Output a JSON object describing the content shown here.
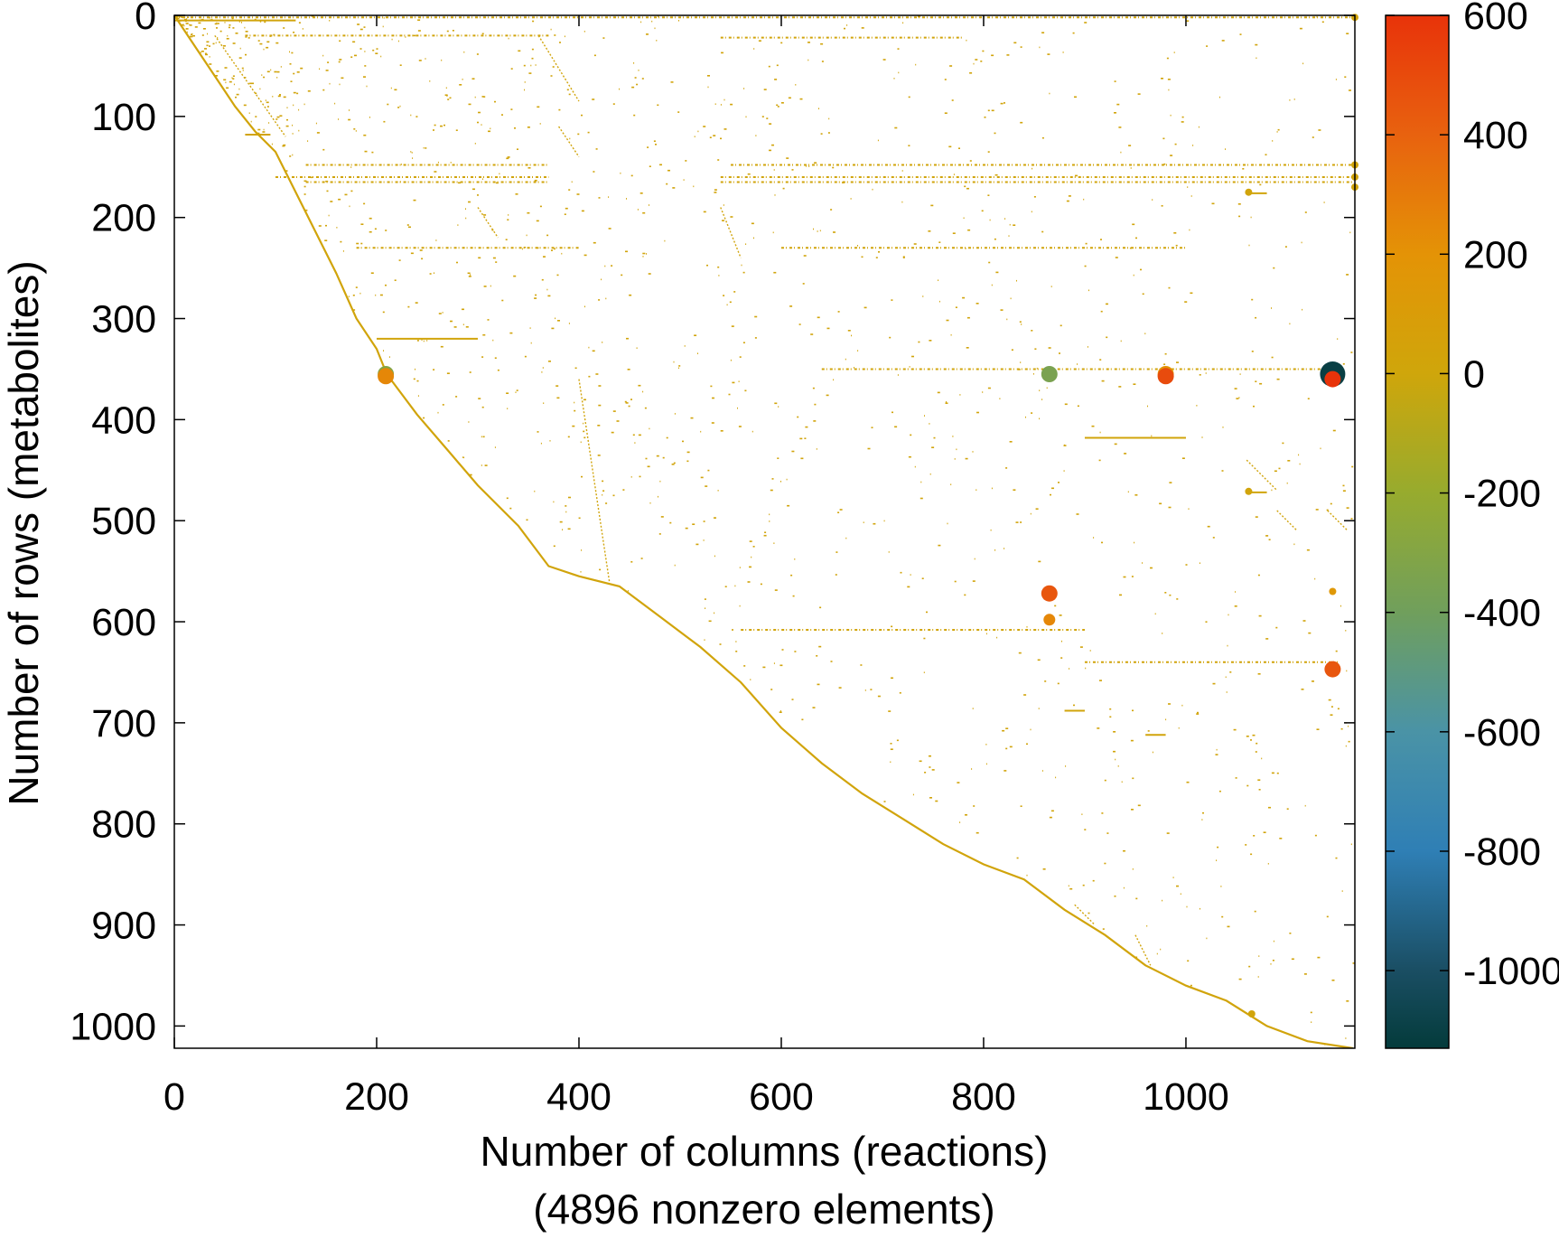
{
  "chart_data": {
    "type": "scatter",
    "title": "",
    "xlabel": "Number of columns (reactions)",
    "xlabel_line2": "(4896 nonzero elements)",
    "ylabel": "Number of rows (metabolites)",
    "xlim": [
      0,
      1167
    ],
    "ylim": [
      1022,
      0
    ],
    "y_inverted": true,
    "grid": false,
    "x_ticks": [
      {
        "value": 0,
        "label": "0"
      },
      {
        "value": 200,
        "label": "200"
      },
      {
        "value": 400,
        "label": "400"
      },
      {
        "value": 600,
        "label": "600"
      },
      {
        "value": 800,
        "label": "800"
      },
      {
        "value": 1000,
        "label": "1000"
      }
    ],
    "y_ticks": [
      {
        "value": 0,
        "label": "0"
      },
      {
        "value": 100,
        "label": "100"
      },
      {
        "value": 200,
        "label": "200"
      },
      {
        "value": 300,
        "label": "300"
      },
      {
        "value": 400,
        "label": "400"
      },
      {
        "value": 500,
        "label": "500"
      },
      {
        "value": 600,
        "label": "600"
      },
      {
        "value": 700,
        "label": "700"
      },
      {
        "value": 800,
        "label": "800"
      },
      {
        "value": 900,
        "label": "900"
      },
      {
        "value": 1000,
        "label": "1000"
      }
    ],
    "colorbar": {
      "range": [
        -1130,
        600
      ],
      "ticks": [
        {
          "value": 600,
          "label": "600"
        },
        {
          "value": 400,
          "label": "400"
        },
        {
          "value": 200,
          "label": "200"
        },
        {
          "value": 0,
          "label": "0"
        },
        {
          "value": -200,
          "label": "-200"
        },
        {
          "value": -400,
          "label": "-400"
        },
        {
          "value": -600,
          "label": "-600"
        },
        {
          "value": -800,
          "label": "-800"
        },
        {
          "value": -1000,
          "label": "-1000"
        }
      ],
      "stops": [
        {
          "value": 600,
          "color": "#e8330a"
        },
        {
          "value": 400,
          "color": "#e8620f"
        },
        {
          "value": 200,
          "color": "#e49306"
        },
        {
          "value": 0,
          "color": "#cfa60b"
        },
        {
          "value": -200,
          "color": "#97ab2e"
        },
        {
          "value": -400,
          "color": "#709f5c"
        },
        {
          "value": -600,
          "color": "#4a93a6"
        },
        {
          "value": -800,
          "color": "#2f7fb5"
        },
        {
          "value": -1000,
          "color": "#1a4e63"
        },
        {
          "value": -1130,
          "color": "#043b3b"
        }
      ]
    },
    "diagonal_band": [
      [
        0,
        0
      ],
      [
        20,
        30
      ],
      [
        40,
        60
      ],
      [
        60,
        90
      ],
      [
        80,
        115
      ],
      [
        100,
        135
      ],
      [
        120,
        175
      ],
      [
        140,
        215
      ],
      [
        160,
        255
      ],
      [
        180,
        300
      ],
      [
        200,
        330
      ],
      [
        210,
        355
      ],
      [
        240,
        395
      ],
      [
        270,
        430
      ],
      [
        300,
        465
      ],
      [
        340,
        505
      ],
      [
        370,
        545
      ],
      [
        400,
        555
      ],
      [
        440,
        565
      ],
      [
        480,
        595
      ],
      [
        520,
        625
      ],
      [
        560,
        660
      ],
      [
        600,
        705
      ],
      [
        640,
        740
      ],
      [
        680,
        770
      ],
      [
        720,
        795
      ],
      [
        760,
        820
      ],
      [
        800,
        840
      ],
      [
        840,
        855
      ],
      [
        880,
        885
      ],
      [
        920,
        910
      ],
      [
        960,
        940
      ],
      [
        1000,
        960
      ],
      [
        1040,
        975
      ],
      [
        1080,
        1000
      ],
      [
        1120,
        1015
      ],
      [
        1165,
        1022
      ]
    ],
    "horizontal_segments": [
      {
        "row": 2,
        "x": [
          0,
          1165
        ],
        "value": 20
      },
      {
        "row": 5,
        "x": [
          0,
          120
        ],
        "value": 20
      },
      {
        "row": 20,
        "x": [
          70,
          370
        ],
        "value": 20
      },
      {
        "row": 22,
        "x": [
          540,
          780
        ],
        "value": 20
      },
      {
        "row": 118,
        "x": [
          70,
          95
        ],
        "value": 20
      },
      {
        "row": 148,
        "x": [
          130,
          370
        ],
        "value": 20
      },
      {
        "row": 148,
        "x": [
          550,
          1165
        ],
        "value": 20
      },
      {
        "row": 160,
        "x": [
          100,
          370
        ],
        "value": 20
      },
      {
        "row": 160,
        "x": [
          540,
          1165
        ],
        "value": 20
      },
      {
        "row": 165,
        "x": [
          130,
          370
        ],
        "value": 20
      },
      {
        "row": 165,
        "x": [
          540,
          1165
        ],
        "value": 20
      },
      {
        "row": 176,
        "x": [
          1060,
          1080
        ],
        "value": 20
      },
      {
        "row": 230,
        "x": [
          180,
          400
        ],
        "value": 20
      },
      {
        "row": 230,
        "x": [
          600,
          1000
        ],
        "value": 20
      },
      {
        "row": 320,
        "x": [
          200,
          300
        ],
        "value": 20
      },
      {
        "row": 350,
        "x": [
          640,
          1150
        ],
        "value": 20
      },
      {
        "row": 418,
        "x": [
          900,
          1000
        ],
        "value": 20
      },
      {
        "row": 472,
        "x": [
          1060,
          1080
        ],
        "value": 20
      },
      {
        "row": 608,
        "x": [
          560,
          900
        ],
        "value": 20
      },
      {
        "row": 640,
        "x": [
          900,
          1150
        ],
        "value": 20
      },
      {
        "row": 688,
        "x": [
          880,
          900
        ],
        "value": 20
      },
      {
        "row": 712,
        "x": [
          960,
          980
        ],
        "value": 20
      }
    ],
    "diagonal_segments": [
      {
        "from": [
          40,
          20
        ],
        "to": [
          110,
          120
        ],
        "value": 20
      },
      {
        "from": [
          360,
          20
        ],
        "to": [
          400,
          85
        ],
        "value": 20
      },
      {
        "from": [
          380,
          110
        ],
        "to": [
          400,
          140
        ],
        "value": 20
      },
      {
        "from": [
          300,
          190
        ],
        "to": [
          320,
          220
        ],
        "value": 20
      },
      {
        "from": [
          540,
          190
        ],
        "to": [
          560,
          240
        ],
        "value": 20
      },
      {
        "from": [
          400,
          360
        ],
        "to": [
          430,
          560
        ],
        "value": 20
      },
      {
        "from": [
          1060,
          440
        ],
        "to": [
          1090,
          470
        ],
        "value": 20
      },
      {
        "from": [
          1090,
          490
        ],
        "to": [
          1110,
          510
        ],
        "value": 20
      },
      {
        "from": [
          1140,
          490
        ],
        "to": [
          1160,
          510
        ],
        "value": 20
      },
      {
        "from": [
          890,
          880
        ],
        "to": [
          910,
          900
        ],
        "value": 20
      },
      {
        "from": [
          950,
          910
        ],
        "to": [
          965,
          940
        ],
        "value": 20
      }
    ],
    "markers": [
      {
        "x": 209,
        "y": 355,
        "value": -300,
        "size": "medium"
      },
      {
        "x": 209,
        "y": 357,
        "value": 250,
        "size": "medium"
      },
      {
        "x": 865,
        "y": 355,
        "value": -350,
        "size": "medium"
      },
      {
        "x": 980,
        "y": 355,
        "value": 200,
        "size": "medium"
      },
      {
        "x": 980,
        "y": 357,
        "value": 500,
        "size": "medium"
      },
      {
        "x": 1145,
        "y": 355,
        "value": -1100,
        "size": "large"
      },
      {
        "x": 1145,
        "y": 360,
        "value": 600,
        "size": "medium"
      },
      {
        "x": 865,
        "y": 572,
        "value": 450,
        "size": "medium"
      },
      {
        "x": 865,
        "y": 598,
        "value": 250,
        "size": "small"
      },
      {
        "x": 1145,
        "y": 570,
        "value": 150,
        "size": "tiny"
      },
      {
        "x": 1145,
        "y": 647,
        "value": 450,
        "size": "medium"
      },
      {
        "x": 1062,
        "y": 175,
        "value": 20,
        "size": "tiny"
      },
      {
        "x": 1062,
        "y": 471,
        "value": 20,
        "size": "tiny"
      },
      {
        "x": 1065,
        "y": 988,
        "value": 20,
        "size": "tiny"
      },
      {
        "x": 1167,
        "y": 148,
        "value": 20,
        "size": "tiny"
      },
      {
        "x": 1167,
        "y": 160,
        "value": 20,
        "size": "tiny"
      },
      {
        "x": 1167,
        "y": 170,
        "value": 20,
        "size": "tiny"
      },
      {
        "x": 1167,
        "y": 2,
        "value": 20,
        "size": "tiny"
      }
    ]
  }
}
